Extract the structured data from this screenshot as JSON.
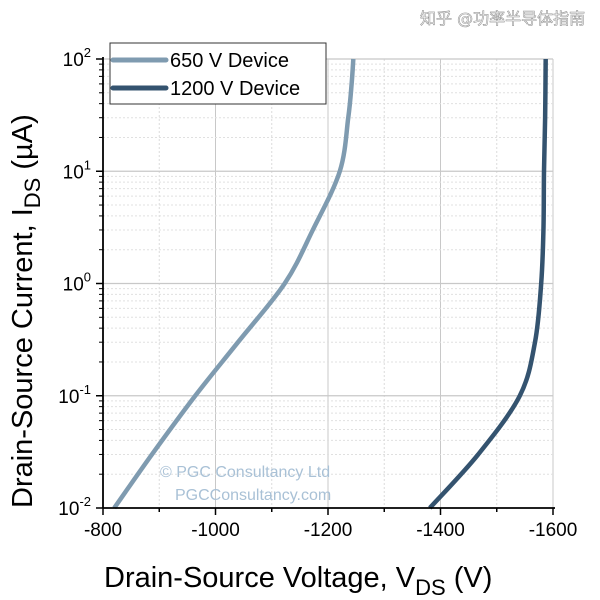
{
  "chart_data": {
    "type": "line",
    "xlabel": "Drain-Source Voltage, V",
    "xlabel_sub": "DS",
    "xlabel_unit": " (V)",
    "ylabel": "Drain-Source Current, I",
    "ylabel_sub": "DS",
    "ylabel_unit": " (µA)",
    "xlim": [
      -800,
      -1600
    ],
    "ylim": [
      0.01,
      100
    ],
    "yscale": "log",
    "grid": true,
    "legend_position": "top-left",
    "x_ticks": [
      "-800",
      "-1000",
      "-1200",
      "-1400",
      "-1600"
    ],
    "y_ticks": [
      {
        "base": "10",
        "exp": "-2"
      },
      {
        "base": "10",
        "exp": "-1"
      },
      {
        "base": "10",
        "exp": "0"
      },
      {
        "base": "10",
        "exp": "1"
      },
      {
        "base": "10",
        "exp": "2"
      }
    ],
    "series": [
      {
        "name": "650 V Device",
        "color": "#7f9bb0",
        "points": [
          [
            -820,
            0.01
          ],
          [
            -887,
            0.03
          ],
          [
            -964,
            0.1
          ],
          [
            -1040,
            0.3
          ],
          [
            -1123,
            1
          ],
          [
            -1173,
            3
          ],
          [
            -1221,
            10
          ],
          [
            -1236,
            30
          ],
          [
            -1242,
            60
          ],
          [
            -1245,
            100
          ]
        ]
      },
      {
        "name": "1200 V Device",
        "color": "#34536f",
        "points": [
          [
            -1381,
            0.01
          ],
          [
            -1467,
            0.03
          ],
          [
            -1541,
            0.1
          ],
          [
            -1568,
            0.3
          ],
          [
            -1579,
            1
          ],
          [
            -1583,
            3
          ],
          [
            -1584,
            10
          ],
          [
            -1586,
            30
          ],
          [
            -1587,
            100
          ]
        ]
      }
    ]
  },
  "watermark": {
    "line1": "© PGC Consultancy Ltd",
    "line2": "PGCConsultancy.com",
    "zhihu": "知乎 @功率半导体指南"
  }
}
